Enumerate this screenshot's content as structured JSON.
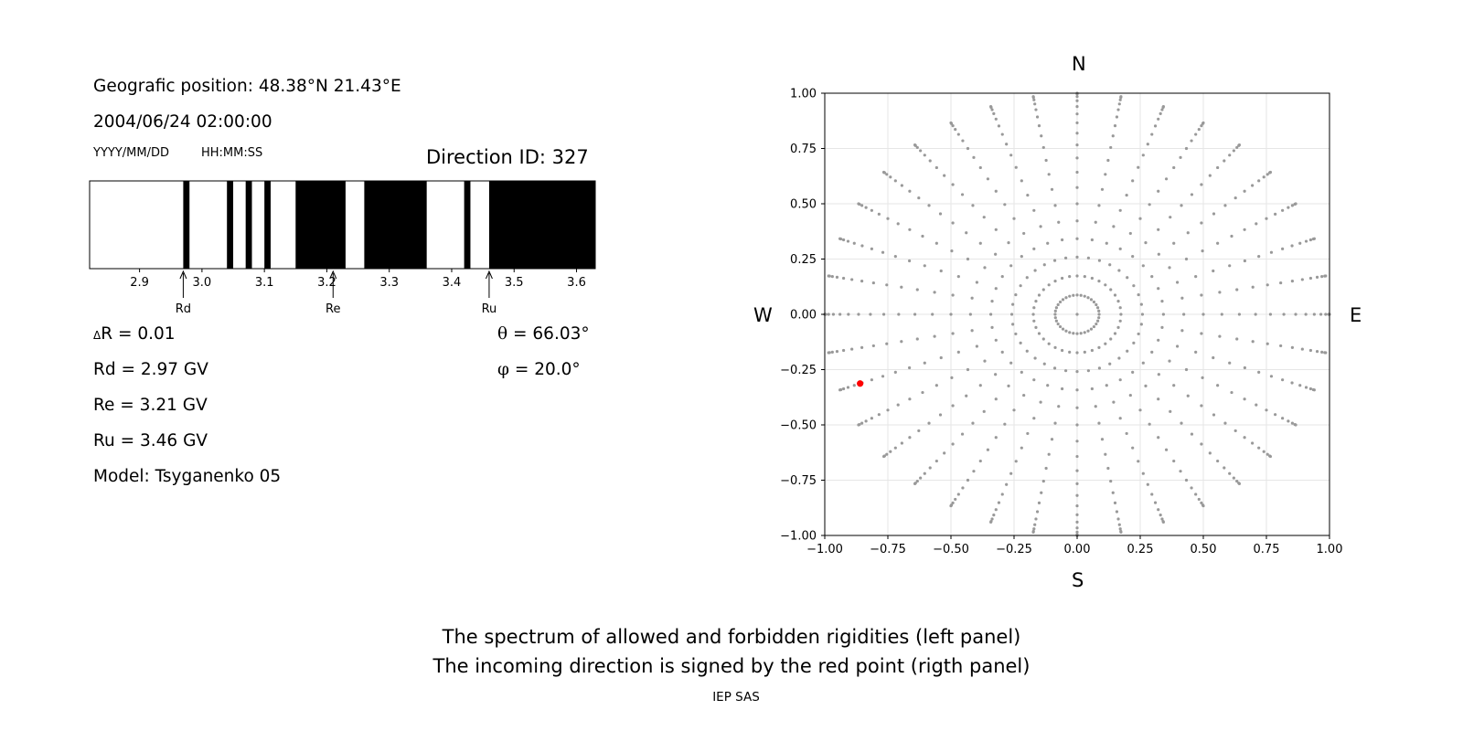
{
  "left_panel": {
    "position_text": "Geografic position: 48.38°N 21.43°E",
    "datetime_text": "2004/06/24 02:00:00",
    "date_format_label": "YYYY/MM/DD",
    "time_format_label": "HH:MM:SS",
    "direction_id_text": "Direction ID: 327",
    "delta_r_symbol": "Δ",
    "delta_r_text": "R = 0.01",
    "rd_text": "Rd = 2.97 GV",
    "re_text": "Re = 3.21 GV",
    "ru_text": "Ru = 3.46 GV",
    "model_text": "Model: Tsyganenko 05",
    "theta_symbol": "θ",
    "theta_text": " = 66.03°",
    "phi_symbol": "φ",
    "phi_text": " = 20.0°"
  },
  "compass": {
    "north": "N",
    "south": "S",
    "west": "W",
    "east": "E"
  },
  "caption": {
    "line1": "The spectrum of allowed and forbidden rigidities (left panel)",
    "line2": "The incoming direction is signed by the red point (rigth panel)",
    "credit": "IEP SAS"
  },
  "chart_data": [
    {
      "type": "rigidity-spectrum",
      "xlim": [
        2.82,
        3.63
      ],
      "xticks": [
        2.9,
        3.0,
        3.1,
        3.2,
        3.3,
        3.4,
        3.5,
        3.6
      ],
      "tick_labels": [
        "2.9",
        "3.0",
        "3.1",
        "3.2",
        "3.3",
        "3.4",
        "3.5",
        "3.6"
      ],
      "forbidden_bands": [
        [
          2.97,
          2.98
        ],
        [
          3.04,
          3.05
        ],
        [
          3.07,
          3.08
        ],
        [
          3.1,
          3.11
        ],
        [
          3.15,
          3.23
        ],
        [
          3.26,
          3.36
        ],
        [
          3.42,
          3.43
        ],
        [
          3.46,
          3.63
        ]
      ],
      "background": "allowed (white)",
      "markers": [
        {
          "label": "Rd",
          "value": 2.97
        },
        {
          "label": "Re",
          "value": 3.21
        },
        {
          "label": "Ru",
          "value": 3.46
        }
      ]
    },
    {
      "type": "scatter",
      "xlim": [
        -1.0,
        1.0
      ],
      "ylim": [
        -1.0,
        1.0
      ],
      "xticks": [
        -1.0,
        -0.75,
        -0.5,
        -0.25,
        0.0,
        0.25,
        0.5,
        0.75,
        1.0
      ],
      "yticks": [
        -1.0,
        -0.75,
        -0.5,
        -0.25,
        0.0,
        0.25,
        0.5,
        0.75,
        1.0
      ],
      "xtick_labels": [
        "−1.00",
        "−0.75",
        "−0.50",
        "−0.25",
        "0.00",
        "0.25",
        "0.50",
        "0.75",
        "1.00"
      ],
      "ytick_labels": [
        "−1.00",
        "−0.75",
        "−0.50",
        "−0.25",
        "0.00",
        "0.25",
        "0.50",
        "0.75",
        "1.00"
      ],
      "grid": true,
      "grid_pattern": {
        "zenith_step_deg": 5,
        "zenith_max_deg": 90,
        "inner_ring_zenith_deg": 15,
        "azimuth_step_deg": 10,
        "inner_ring_azimuth_step_deg": 10
      },
      "grid_point_color": "#999999",
      "highlight": {
        "x": -0.86,
        "y": -0.313,
        "color": "#ff0000"
      }
    }
  ]
}
